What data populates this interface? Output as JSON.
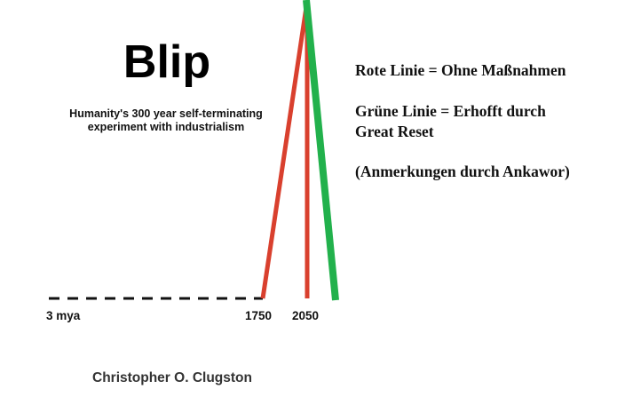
{
  "title": "Blip",
  "subtitle": "Humanity's 300 year self-terminating experiment with industrialism",
  "legend": {
    "red_line": "Rote Linie = Ohne Maßnahmen",
    "green_line_1": "Grüne Linie = Erhofft durch",
    "green_line_2": "Great Reset",
    "note": "(Anmerkungen durch Ankawor)"
  },
  "axis_labels": {
    "start": "3 mya",
    "year_1750": "1750",
    "year_2050": "2050"
  },
  "author": "Christopher O. Clugston",
  "colors": {
    "red": "#d9402e",
    "green": "#22b14c",
    "baseline": "#111111"
  }
}
